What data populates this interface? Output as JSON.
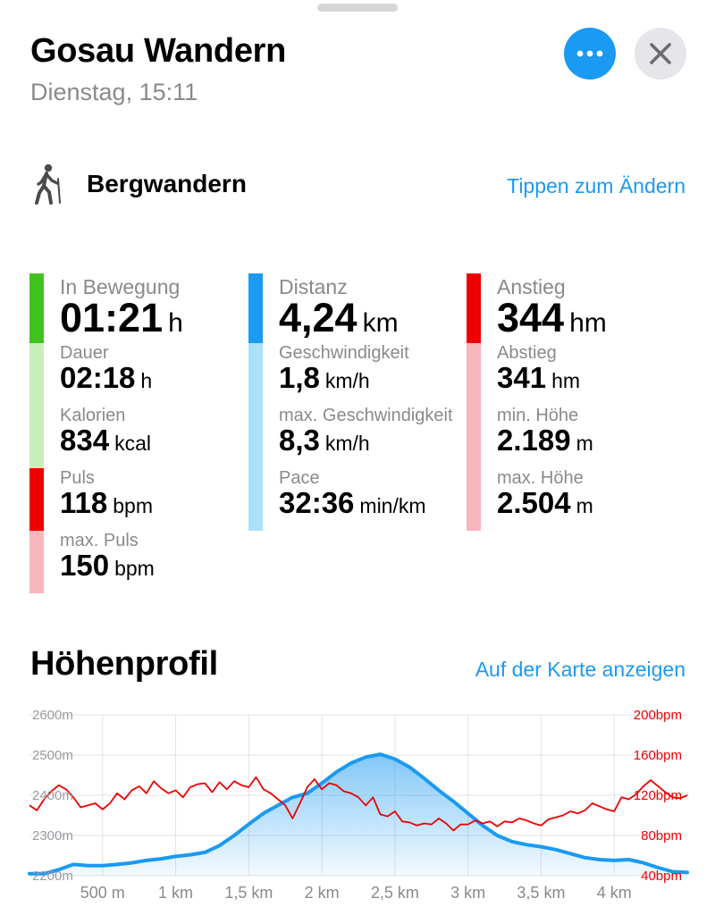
{
  "header": {
    "title": "Gosau Wandern",
    "subtitle": "Dienstag, 15:11"
  },
  "icons": {
    "more": "ellipsis-icon",
    "close": "close-icon",
    "activity": "hiking-figure-icon"
  },
  "activity": {
    "name": "Bergwandern",
    "change_link": "Tippen zum Ändern"
  },
  "colors": {
    "accent": "#1a9af2",
    "green": "#3fc21d",
    "green_light": "#c8efbb",
    "red": "#ee0000",
    "red_light": "#f7b7bd",
    "blue": "#1a9af2",
    "blue_light": "#ace0fb"
  },
  "metrics": {
    "col1": [
      {
        "label": "In Bewegung",
        "value": "01:21",
        "unit": "h",
        "big": true,
        "bar": "green"
      },
      {
        "label": "Dauer",
        "value": "02:18",
        "unit": "h",
        "bar": "green_light"
      },
      {
        "label": "Kalorien",
        "value": "834",
        "unit": "kcal",
        "bar": "green_light"
      },
      {
        "label": "Puls",
        "value": "118",
        "unit": "bpm",
        "bar": "red"
      },
      {
        "label": "max. Puls",
        "value": "150",
        "unit": "bpm",
        "bar": "red_light"
      }
    ],
    "col2": [
      {
        "label": "Distanz",
        "value": "4,24",
        "unit": "km",
        "big": true,
        "bar": "blue"
      },
      {
        "label": "Geschwindigkeit",
        "value": "1,8",
        "unit": "km/h",
        "bar": "blue_light"
      },
      {
        "label": "max. Geschwindigkeit",
        "value": "8,3",
        "unit": "km/h",
        "bar": "blue_light"
      },
      {
        "label": "Pace",
        "value": "32:36",
        "unit": "min/km",
        "bar": "blue_light"
      }
    ],
    "col3": [
      {
        "label": "Anstieg",
        "value": "344",
        "unit": "hm",
        "big": true,
        "bar": "red"
      },
      {
        "label": "Abstieg",
        "value": "341",
        "unit": "hm",
        "bar": "red_light"
      },
      {
        "label": "min. Höhe",
        "value": "2.189",
        "unit": "m",
        "bar": "red_light"
      },
      {
        "label": "max. Höhe",
        "value": "2.504",
        "unit": "m",
        "bar": "red_light"
      }
    ]
  },
  "elevation": {
    "title": "Höhenprofil",
    "map_link": "Auf der Karte anzeigen"
  },
  "chart_data": {
    "type": "line",
    "x_unit": "km",
    "x_range": [
      0,
      4.5
    ],
    "x_ticks": [
      {
        "v": 0.5,
        "label": "500 m"
      },
      {
        "v": 1.0,
        "label": "1 km"
      },
      {
        "v": 1.5,
        "label": "1,5 km"
      },
      {
        "v": 2.0,
        "label": "2 km"
      },
      {
        "v": 2.5,
        "label": "2,5 km"
      },
      {
        "v": 3.0,
        "label": "3 km"
      },
      {
        "v": 3.5,
        "label": "3,5 km"
      },
      {
        "v": 4.0,
        "label": "4 km"
      }
    ],
    "y_left": {
      "range": [
        2200,
        2600
      ],
      "ticks": [
        {
          "v": 2600,
          "label": "2600m"
        },
        {
          "v": 2500,
          "label": "2500m"
        },
        {
          "v": 2400,
          "label": "2400m"
        },
        {
          "v": 2300,
          "label": "2300m"
        },
        {
          "v": 2200,
          "label": "2200m"
        }
      ]
    },
    "y_right": {
      "range": [
        40,
        200
      ],
      "ticks": [
        {
          "v": 200,
          "label": "200bpm"
        },
        {
          "v": 160,
          "label": "160bpm"
        },
        {
          "v": 120,
          "label": "120bpm"
        },
        {
          "v": 80,
          "label": "80bpm"
        },
        {
          "v": 40,
          "label": "40bpm"
        }
      ]
    },
    "series": [
      {
        "axis": "left",
        "color": "#1a9af2",
        "fill": true,
        "x": [
          0,
          0.1,
          0.2,
          0.3,
          0.4,
          0.5,
          0.6,
          0.7,
          0.8,
          0.9,
          1.0,
          1.1,
          1.2,
          1.3,
          1.4,
          1.5,
          1.6,
          1.7,
          1.8,
          1.9,
          2.0,
          2.1,
          2.2,
          2.3,
          2.4,
          2.5,
          2.6,
          2.7,
          2.8,
          2.9,
          3.0,
          3.1,
          3.2,
          3.3,
          3.4,
          3.5,
          3.6,
          3.7,
          3.8,
          3.9,
          4.0,
          4.1,
          4.2,
          4.3,
          4.4,
          4.5
        ],
        "y": [
          2205,
          2205,
          2215,
          2228,
          2225,
          2225,
          2228,
          2232,
          2238,
          2242,
          2248,
          2252,
          2258,
          2275,
          2300,
          2328,
          2355,
          2375,
          2395,
          2405,
          2430,
          2458,
          2480,
          2495,
          2502,
          2490,
          2470,
          2442,
          2412,
          2385,
          2355,
          2325,
          2300,
          2285,
          2277,
          2272,
          2265,
          2255,
          2245,
          2240,
          2238,
          2240,
          2232,
          2220,
          2210,
          2208
        ]
      },
      {
        "axis": "right",
        "color": "#ee0000",
        "fill": false,
        "x": [
          0,
          0.05,
          0.1,
          0.15,
          0.2,
          0.25,
          0.3,
          0.35,
          0.4,
          0.45,
          0.5,
          0.55,
          0.6,
          0.65,
          0.7,
          0.75,
          0.8,
          0.85,
          0.9,
          0.95,
          1.0,
          1.05,
          1.1,
          1.15,
          1.2,
          1.25,
          1.3,
          1.35,
          1.4,
          1.45,
          1.5,
          1.55,
          1.6,
          1.65,
          1.7,
          1.75,
          1.8,
          1.85,
          1.9,
          1.95,
          2.0,
          2.05,
          2.1,
          2.15,
          2.2,
          2.25,
          2.3,
          2.35,
          2.4,
          2.45,
          2.5,
          2.55,
          2.6,
          2.65,
          2.7,
          2.75,
          2.8,
          2.85,
          2.9,
          2.95,
          3.0,
          3.05,
          3.1,
          3.15,
          3.2,
          3.25,
          3.3,
          3.35,
          3.4,
          3.45,
          3.5,
          3.55,
          3.6,
          3.65,
          3.7,
          3.75,
          3.8,
          3.85,
          3.9,
          3.95,
          4.0,
          4.05,
          4.1,
          4.15,
          4.2,
          4.25,
          4.3,
          4.35,
          4.4,
          4.45,
          4.5
        ],
        "y": [
          110,
          105,
          116,
          124,
          130,
          126,
          118,
          108,
          110,
          112,
          106,
          112,
          122,
          116,
          125,
          129,
          122,
          134,
          127,
          122,
          125,
          118,
          128,
          131,
          132,
          123,
          133,
          126,
          134,
          130,
          128,
          138,
          126,
          122,
          116,
          110,
          97,
          112,
          128,
          136,
          126,
          132,
          130,
          124,
          122,
          118,
          110,
          118,
          101,
          99,
          104,
          94,
          93,
          90,
          92,
          91,
          97,
          92,
          85,
          91,
          91,
          95,
          92,
          94,
          89,
          94,
          93,
          97,
          95,
          92,
          90,
          96,
          98,
          100,
          104,
          102,
          105,
          112,
          109,
          106,
          104,
          118,
          116,
          121,
          129,
          135,
          129,
          123,
          118,
          117,
          120
        ]
      }
    ]
  }
}
